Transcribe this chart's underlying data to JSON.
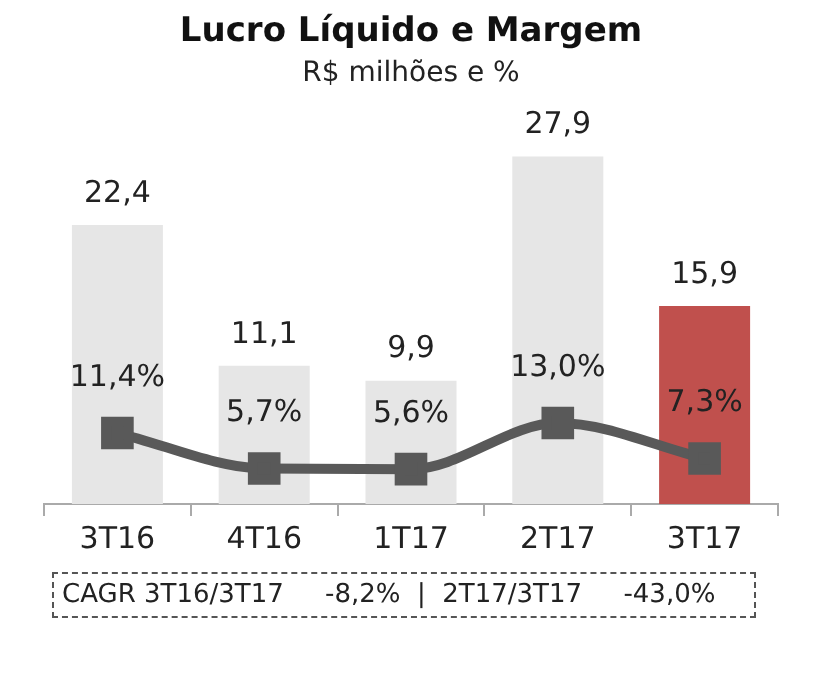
{
  "chart_data": {
    "type": "bar",
    "title": "Lucro Líquido e Margem",
    "subtitle": "R$ milhões e %",
    "categories": [
      "3T16",
      "4T16",
      "1T17",
      "2T17",
      "3T17"
    ],
    "series": [
      {
        "colors": [
          "#e6e6e6",
          "#e6e6e6",
          "#e6e6e6",
          "#e6e6e6",
          "#c0504d"
        ],
        "values": [
          22.4,
          11.1,
          9.9,
          27.9,
          15.9
        ],
        "value_labels": [
          "22,4",
          "11,1",
          "9,9",
          "27,9",
          "15,9"
        ]
      },
      {
        "type": "line",
        "axis": "y2",
        "color": "#595959",
        "marker": "square",
        "values": [
          11.4,
          5.7,
          5.6,
          13.0,
          7.3
        ],
        "value_labels": [
          "11,4%",
          "5,7%",
          "5,6%",
          "13,0%",
          "7,3%"
        ]
      }
    ],
    "tick_labels": "x",
    "legend": false,
    "annotations": [
      "CAGR 3T16/3T17     -8,2%  |  2T17/3T17     -43,0%"
    ]
  }
}
